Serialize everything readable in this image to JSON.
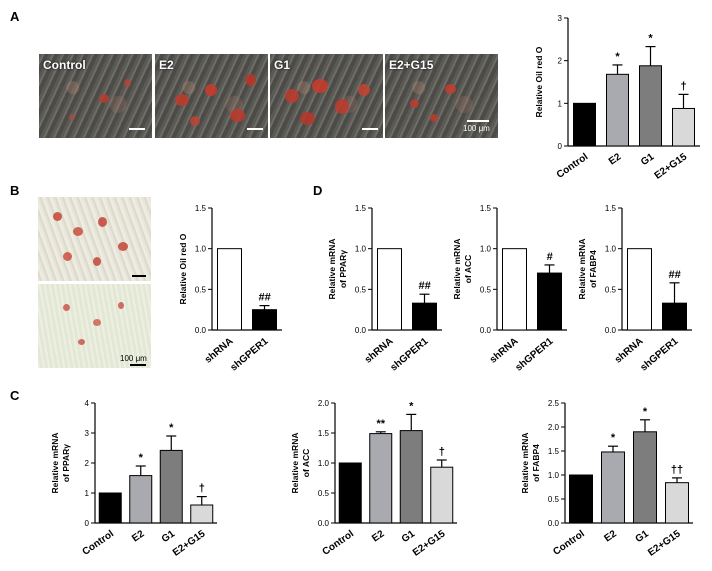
{
  "panel_labels": {
    "a": "A",
    "b": "B",
    "c": "C",
    "d": "D"
  },
  "micrographs": {
    "a": [
      "Control",
      "E2",
      "G1",
      "E2+G15"
    ],
    "scale": "100 μm"
  },
  "colors": {
    "black": "#000000",
    "dark_gray": "#7d7d7d",
    "gray": "#a9a9b0",
    "light_gray": "#d9d9d9",
    "white": "#ffffff",
    "stain_red": "#c0392b"
  },
  "chart_data": [
    {
      "id": "a",
      "type": "bar",
      "ylabel": "Relative Oil red O",
      "categories": [
        "Control",
        "E2",
        "G1",
        "E2+G15"
      ],
      "values": [
        1.0,
        1.68,
        1.88,
        0.88
      ],
      "errors": [
        0,
        0.22,
        0.45,
        0.33
      ],
      "annotations": [
        "",
        "*",
        "*",
        "†"
      ],
      "ylim": [
        0,
        3
      ],
      "ticks": [
        "0",
        "1",
        "2",
        "3"
      ]
    },
    {
      "id": "b",
      "type": "bar",
      "ylabel": "Relative Oil red O",
      "categories": [
        "shRNA",
        "shGPER1"
      ],
      "values": [
        1.0,
        0.25
      ],
      "errors": [
        0,
        0.05
      ],
      "annotations": [
        "",
        "##"
      ],
      "ylim": [
        0,
        1.5
      ],
      "ticks": [
        "0.0",
        "0.5",
        "1.0",
        "1.5"
      ]
    },
    {
      "id": "d1",
      "type": "bar",
      "ylabel": [
        "Relative mRNA",
        "of PPARγ"
      ],
      "categories": [
        "shRNA",
        "shGPER1"
      ],
      "values": [
        1.0,
        0.33
      ],
      "errors": [
        0,
        0.11
      ],
      "annotations": [
        "",
        "##"
      ],
      "ylim": [
        0,
        1.5
      ],
      "ticks": [
        "0.0",
        "0.5",
        "1.0",
        "1.5"
      ]
    },
    {
      "id": "d2",
      "type": "bar",
      "ylabel": [
        "Relative mRNA",
        "of ACC"
      ],
      "categories": [
        "shRNA",
        "shGPER1"
      ],
      "values": [
        1.0,
        0.7
      ],
      "errors": [
        0,
        0.1
      ],
      "annotations": [
        "",
        "#"
      ],
      "ylim": [
        0,
        1.5
      ],
      "ticks": [
        "0.0",
        "0.5",
        "1.0",
        "1.5"
      ]
    },
    {
      "id": "d3",
      "type": "bar",
      "ylabel": [
        "Relative mRNA",
        "of FABP4"
      ],
      "categories": [
        "shRNA",
        "shGPER1"
      ],
      "values": [
        1.0,
        0.33
      ],
      "errors": [
        0,
        0.25
      ],
      "annotations": [
        "",
        "##"
      ],
      "ylim": [
        0,
        1.5
      ],
      "ticks": [
        "0.0",
        "0.5",
        "1.0",
        "1.5"
      ]
    },
    {
      "id": "c1",
      "type": "bar",
      "ylabel": [
        "Relative mRNA",
        "of PPARγ"
      ],
      "categories": [
        "Control",
        "E2",
        "G1",
        "E2+G15"
      ],
      "values": [
        1.0,
        1.58,
        2.42,
        0.6
      ],
      "errors": [
        0,
        0.32,
        0.48,
        0.28
      ],
      "annotations": [
        "",
        "*",
        "*",
        "†"
      ],
      "ylim": [
        0,
        4
      ],
      "ticks": [
        "0",
        "1",
        "2",
        "3",
        "4"
      ]
    },
    {
      "id": "c2",
      "type": "bar",
      "ylabel": [
        "Relative mRNA",
        "of ACC"
      ],
      "categories": [
        "Control",
        "E2",
        "G1",
        "E2+G15"
      ],
      "values": [
        1.0,
        1.49,
        1.54,
        0.93
      ],
      "errors": [
        0,
        0.03,
        0.27,
        0.12
      ],
      "annotations": [
        "",
        "**",
        "*",
        "†"
      ],
      "ylim": [
        0,
        2
      ],
      "ticks": [
        "0.0",
        "0.5",
        "1.0",
        "1.5",
        "2.0"
      ]
    },
    {
      "id": "c3",
      "type": "bar",
      "ylabel": [
        "Relative mRNA",
        "of FABP4"
      ],
      "categories": [
        "Control",
        "E2",
        "G1",
        "E2+G15"
      ],
      "values": [
        1.0,
        1.48,
        1.9,
        0.84
      ],
      "errors": [
        0,
        0.12,
        0.25,
        0.1
      ],
      "annotations": [
        "",
        "*",
        "*",
        "††"
      ],
      "ylim": [
        0,
        2.5
      ],
      "ticks": [
        "0.0",
        "0.5",
        "1.0",
        "1.5",
        "2.0",
        "2.5"
      ]
    }
  ]
}
